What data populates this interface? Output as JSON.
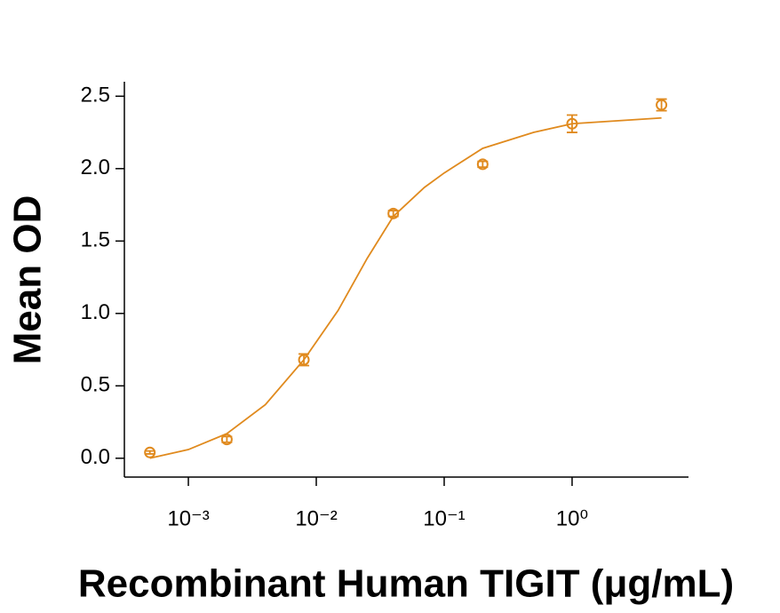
{
  "chart_data": {
    "type": "scatter",
    "x_label": "Recombinant Human TIGIT (μg/mL)",
    "y_label": "Mean OD",
    "log_x": true,
    "xlim": [
      0.000316,
      8.13
    ],
    "ylim": [
      -0.13,
      2.6
    ],
    "xticks": [
      {
        "value": 0.001,
        "label": "10⁻³"
      },
      {
        "value": 0.01,
        "label": "10⁻²"
      },
      {
        "value": 0.1,
        "label": "10⁻¹"
      },
      {
        "value": 1,
        "label": "10⁰"
      }
    ],
    "yticks": [
      {
        "value": 0,
        "label": "0.0"
      },
      {
        "value": 0.5,
        "label": "0.5"
      },
      {
        "value": 1,
        "label": "1.0"
      },
      {
        "value": 1.5,
        "label": "1.5"
      },
      {
        "value": 2,
        "label": "2.0"
      },
      {
        "value": 2.5,
        "label": "2.5"
      }
    ],
    "series": [
      {
        "color": "#e08a1e",
        "marker": "circle",
        "x": [
          0.0005,
          0.002,
          0.008,
          0.04,
          0.2,
          1,
          5
        ],
        "values": [
          0.04,
          0.13,
          0.68,
          1.69,
          2.03,
          2.31,
          2.44
        ],
        "errors": [
          0.01,
          0.02,
          0.04,
          0.02,
          0.02,
          0.06,
          0.04
        ]
      },
      {
        "color": "#e08a1e",
        "marker": "line",
        "x": [
          0.0005,
          0.001,
          0.002,
          0.004,
          0.008,
          0.0148,
          0.025,
          0.04,
          0.07,
          0.1,
          0.2,
          0.5,
          1,
          5
        ],
        "values": [
          0.0,
          0.06,
          0.17,
          0.37,
          0.68,
          1.02,
          1.38,
          1.67,
          1.87,
          1.97,
          2.14,
          2.25,
          2.31,
          2.35
        ]
      }
    ]
  }
}
